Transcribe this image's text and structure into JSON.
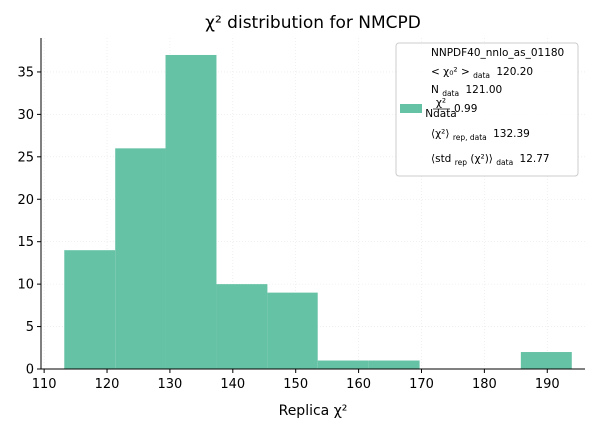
{
  "chart_data": {
    "type": "bar",
    "title": "χ² distribution for NMCPD",
    "xlabel": "Replica χ²",
    "ylabel": "",
    "xlim": [
      109.5,
      196
    ],
    "ylim": [
      0,
      39
    ],
    "xticks": [
      110,
      120,
      130,
      140,
      150,
      160,
      170,
      180,
      190
    ],
    "yticks": [
      0,
      5,
      10,
      15,
      20,
      25,
      30,
      35
    ],
    "grid": true,
    "legend_position": "top-right",
    "bar_color": "#66c2a5",
    "bins": [
      {
        "x0": 113.2,
        "x1": 121.3,
        "count": 14
      },
      {
        "x0": 121.3,
        "x1": 129.3,
        "count": 26
      },
      {
        "x0": 129.3,
        "x1": 137.4,
        "count": 37
      },
      {
        "x0": 137.4,
        "x1": 145.5,
        "count": 10
      },
      {
        "x0": 145.5,
        "x1": 153.5,
        "count": 9
      },
      {
        "x0": 153.5,
        "x1": 161.6,
        "count": 1
      },
      {
        "x0": 161.6,
        "x1": 169.7,
        "count": 1
      },
      {
        "x0": 169.7,
        "x1": 177.8,
        "count": 0
      },
      {
        "x0": 177.8,
        "x1": 185.8,
        "count": 0
      },
      {
        "x0": 185.8,
        "x1": 193.9,
        "count": 2
      }
    ],
    "legend": {
      "name": "NNPDF40_nnlo_as_01180",
      "chi2_0_label": "< χ₀² >",
      "chi2_0_sub": "data",
      "chi2_0_value": "120.20",
      "ndata_label": "N",
      "ndata_sub": "data",
      "ndata_value": "121.00",
      "ratio_num": "χ²",
      "ratio_den": "Ndata",
      "ratio_value": "0.99",
      "rep_label": "⟨χ²⟩",
      "rep_sub": "rep, data",
      "rep_value": "132.39",
      "std_label": "⟨std",
      "std_sub1": "rep",
      "std_mid": "(χ²)⟩",
      "std_sub2": "data",
      "std_value": "12.77"
    }
  }
}
